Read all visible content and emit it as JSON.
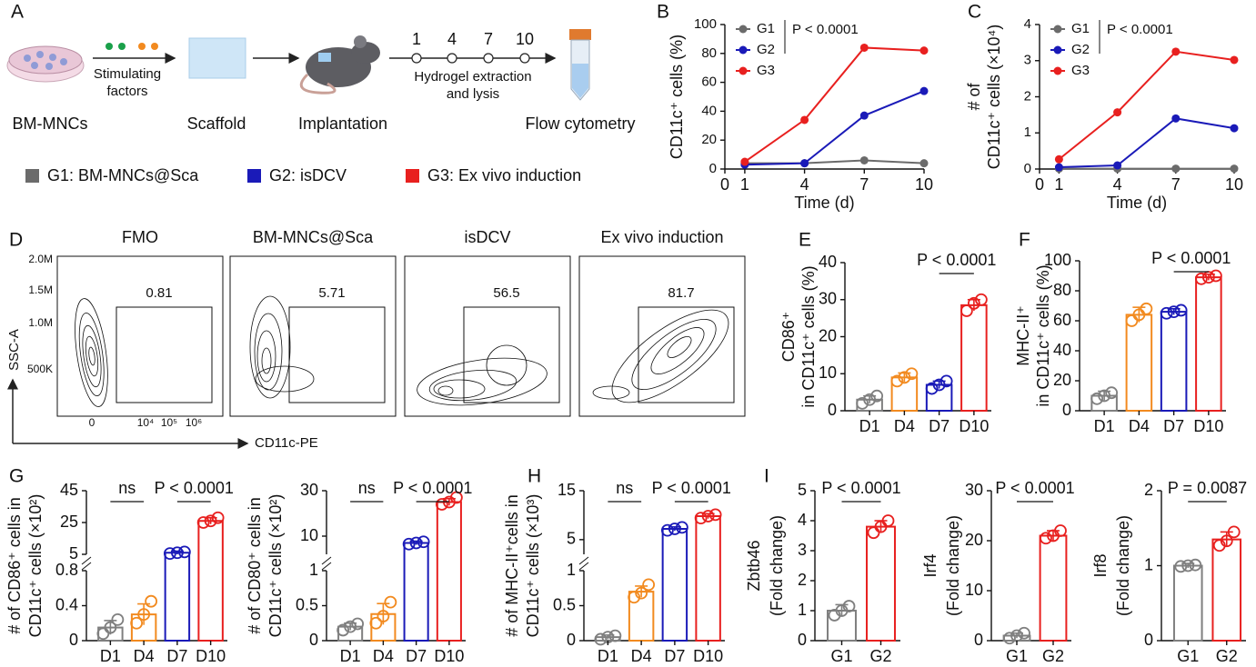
{
  "panel_labels": [
    "A",
    "B",
    "C",
    "D",
    "E",
    "F",
    "G",
    "H",
    "I"
  ],
  "schematic": {
    "steps": [
      "BM-MNCs",
      "Scaffold",
      "Implantation",
      "Flow cytometry"
    ],
    "stimulus": [
      "Stimulating",
      "factors"
    ],
    "days": [
      1,
      4,
      7,
      10
    ],
    "process": [
      "Hydrogel extraction",
      "and lysis"
    ],
    "groups": [
      {
        "label": "G1: BM-MNCs@Sca",
        "color": "#6b6b6b"
      },
      {
        "label": "G2: isDCV",
        "color": "#1a1ab8"
      },
      {
        "label": "G3: Ex vivo induction",
        "color": "#e8201f"
      }
    ]
  },
  "flow": {
    "y_label": "SSC-A",
    "x_label": "CD11c-PE",
    "yticks": [
      "2.0M",
      "1.5M",
      "1.0M",
      "500K"
    ],
    "xticks": [
      "0",
      "10⁴",
      "10⁵",
      "10⁶"
    ],
    "panels": [
      {
        "title": "FMO",
        "gate": 0.81
      },
      {
        "title": "BM-MNCs@Sca",
        "gate": 5.71
      },
      {
        "title": "isDCV",
        "gate": 56.5
      },
      {
        "title": "Ex vivo induction",
        "gate": 81.7
      }
    ]
  },
  "chart_data": [
    {
      "type": "line",
      "x": [
        1,
        4,
        7,
        10
      ],
      "xlim": [
        0,
        10
      ],
      "xticks": [
        0,
        1,
        4,
        7,
        10
      ],
      "ylim": [
        0,
        100
      ],
      "yticks": [
        0,
        20,
        40,
        60,
        80,
        100
      ],
      "x_label": "Time (d)",
      "y_label": [
        "CD11c⁺ cells (%)"
      ],
      "legend": "upper left",
      "annotation": "P < 0.0001",
      "series": [
        {
          "name": "G1",
          "color": "#6b6b6b",
          "values": [
            4,
            4,
            6,
            4
          ]
        },
        {
          "name": "G2",
          "color": "#1a1ab8",
          "values": [
            3,
            4,
            37,
            54
          ]
        },
        {
          "name": "G3",
          "color": "#e8201f",
          "values": [
            5,
            34,
            84,
            82
          ]
        }
      ]
    },
    {
      "type": "line",
      "x": [
        1,
        4,
        7,
        10
      ],
      "xlim": [
        0,
        10
      ],
      "xticks": [
        0,
        1,
        4,
        7,
        10
      ],
      "ylim": [
        0,
        4
      ],
      "yticks": [
        0,
        1,
        2,
        3,
        4
      ],
      "x_label": "Time (d)",
      "y_label": [
        "# of",
        "CD11c⁺ cells (×10⁴)"
      ],
      "legend": "upper left",
      "annotation": "P < 0.0001",
      "series": [
        {
          "name": "G1",
          "color": "#6b6b6b",
          "values": [
            0.01,
            0.01,
            0.01,
            0.01
          ]
        },
        {
          "name": "G2",
          "color": "#1a1ab8",
          "values": [
            0.05,
            0.1,
            1.4,
            1.13
          ]
        },
        {
          "name": "G3",
          "color": "#e8201f",
          "values": [
            0.27,
            1.57,
            3.25,
            3.02
          ]
        }
      ]
    },
    {
      "type": "bar",
      "categories": [
        "D1",
        "D4",
        "D7",
        "D10"
      ],
      "colors": [
        "#7f7f7f",
        "#f28a1f",
        "#1a1ab8",
        "#e8201f"
      ],
      "values": [
        3,
        9,
        7,
        28.5
      ],
      "errors": [
        1,
        1.2,
        1,
        1.5
      ],
      "points": [
        [
          2,
          3,
          4
        ],
        [
          8,
          9,
          10
        ],
        [
          6,
          7,
          8
        ],
        [
          27,
          29,
          30
        ]
      ],
      "ylim": [
        0,
        40
      ],
      "yticks": [
        0,
        10,
        20,
        30,
        40
      ],
      "y_label": [
        "CD86⁺",
        "in CD11c⁺ cells (%)"
      ],
      "comparisons": [
        {
          "label": "P < 0.0001",
          "pair": [
            "D7",
            "D10"
          ]
        }
      ]
    },
    {
      "type": "bar",
      "categories": [
        "D1",
        "D4",
        "D7",
        "D10"
      ],
      "colors": [
        "#7f7f7f",
        "#f28a1f",
        "#1a1ab8",
        "#e8201f"
      ],
      "values": [
        10,
        64,
        66,
        89
      ],
      "errors": [
        3,
        5,
        2,
        2
      ],
      "points": [
        [
          8,
          10,
          12
        ],
        [
          60,
          64,
          68
        ],
        [
          65,
          66,
          67
        ],
        [
          88,
          89,
          90
        ]
      ],
      "ylim": [
        0,
        100
      ],
      "yticks": [
        0,
        20,
        40,
        60,
        80,
        100
      ],
      "y_label": [
        "MHC-II⁺",
        "in CD11c⁺ cells (%)"
      ],
      "comparisons": [
        {
          "label": "P < 0.0001",
          "pair": [
            "D7",
            "D10"
          ]
        }
      ]
    },
    {
      "type": "bar",
      "categories": [
        "D1",
        "D4",
        "D7",
        "D10"
      ],
      "colors": [
        "#7f7f7f",
        "#f28a1f",
        "#1a1ab8",
        "#e8201f"
      ],
      "values": [
        0.15,
        0.3,
        6,
        26
      ],
      "errors": [
        0.08,
        0.12,
        1,
        2
      ],
      "points": [
        [
          0.08,
          0.15,
          0.24
        ],
        [
          0.2,
          0.3,
          0.45
        ],
        [
          5.5,
          6,
          6.5
        ],
        [
          25,
          26,
          28
        ]
      ],
      "segments": [
        {
          "ylim": [
            0,
            0.8
          ],
          "yticks": [
            0,
            0.4,
            0.8
          ]
        },
        {
          "ylim": [
            5,
            45
          ],
          "yticks": [
            5,
            25,
            45
          ]
        }
      ],
      "y_label": [
        "# of CD86⁺ cells in",
        "CD11c⁺ cells (×10²)"
      ],
      "comparisons": [
        {
          "label": "ns",
          "pair": [
            "D1",
            "D4"
          ]
        },
        {
          "label": "P < 0.0001",
          "pair": [
            "D7",
            "D10"
          ]
        }
      ]
    },
    {
      "type": "bar",
      "categories": [
        "D1",
        "D4",
        "D7",
        "D10"
      ],
      "colors": [
        "#7f7f7f",
        "#f28a1f",
        "#1a1ab8",
        "#e8201f"
      ],
      "values": [
        0.2,
        0.38,
        7,
        25
      ],
      "errors": [
        0.05,
        0.15,
        0.8,
        1.5
      ],
      "points": [
        [
          0.15,
          0.2,
          0.24
        ],
        [
          0.25,
          0.35,
          0.55
        ],
        [
          6.5,
          7,
          7.5
        ],
        [
          24,
          25,
          27
        ]
      ],
      "segments": [
        {
          "ylim": [
            0,
            1
          ],
          "yticks": [
            0,
            0.5,
            1
          ]
        },
        {
          "ylim": [
            2,
            30
          ],
          "yticks": [
            10,
            30
          ]
        }
      ],
      "y_label": [
        "# of CD80⁺ cells in",
        "CD11c⁺ cells (×10²)"
      ],
      "comparisons": [
        {
          "label": "ns",
          "pair": [
            "D1",
            "D4"
          ]
        },
        {
          "label": "P < 0.0001",
          "pair": [
            "D7",
            "D10"
          ]
        }
      ]
    },
    {
      "type": "bar",
      "categories": [
        "D1",
        "D4",
        "D7",
        "D10"
      ],
      "colors": [
        "#7f7f7f",
        "#f28a1f",
        "#1a1ab8",
        "#e8201f"
      ],
      "values": [
        0.05,
        0.7,
        7.2,
        9.8
      ],
      "errors": [
        0.03,
        0.08,
        0.4,
        0.5
      ],
      "points": [
        [
          0.02,
          0.05,
          0.07
        ],
        [
          0.62,
          0.68,
          0.8
        ],
        [
          6.9,
          7.2,
          7.5
        ],
        [
          9.4,
          9.8,
          10.1
        ]
      ],
      "segments": [
        {
          "ylim": [
            0,
            1
          ],
          "yticks": [
            0,
            0.5,
            1
          ]
        },
        {
          "ylim": [
            2,
            15
          ],
          "yticks": [
            5,
            15
          ]
        }
      ],
      "y_label": [
        "# of MHC-II⁺cells in",
        "CD11c⁺ cells (×10³)"
      ],
      "comparisons": [
        {
          "label": "ns",
          "pair": [
            "D1",
            "D4"
          ]
        },
        {
          "label": "P < 0.0001",
          "pair": [
            "D7",
            "D10"
          ]
        }
      ]
    },
    {
      "type": "bar",
      "categories": [
        "G1",
        "G2"
      ],
      "colors": [
        "#7f7f7f",
        "#e8201f"
      ],
      "values": [
        1,
        3.8
      ],
      "errors": [
        0.2,
        0.2
      ],
      "points": [
        [
          0.85,
          1,
          1.15
        ],
        [
          3.6,
          3.8,
          4.0
        ]
      ],
      "ylim": [
        0,
        5
      ],
      "yticks": [
        0,
        1,
        2,
        3,
        4,
        5
      ],
      "y_label": [
        "Zbtb46",
        "(Fold change)"
      ],
      "comparisons": [
        {
          "label": "P < 0.0001",
          "pair": [
            "G1",
            "G2"
          ]
        }
      ]
    },
    {
      "type": "bar",
      "categories": [
        "G1",
        "G2"
      ],
      "colors": [
        "#7f7f7f",
        "#e8201f"
      ],
      "values": [
        1,
        21
      ],
      "errors": [
        0.5,
        1
      ],
      "points": [
        [
          0.5,
          1,
          1.5
        ],
        [
          20.5,
          21,
          22
        ]
      ],
      "ylim": [
        0,
        30
      ],
      "yticks": [
        0,
        10,
        20,
        30
      ],
      "y_label": [
        "Irf4",
        "(Fold change)"
      ],
      "comparisons": [
        {
          "label": "P < 0.0001",
          "pair": [
            "G1",
            "G2"
          ]
        }
      ]
    },
    {
      "type": "bar",
      "categories": [
        "G1",
        "G2"
      ],
      "colors": [
        "#7f7f7f",
        "#e8201f"
      ],
      "values": [
        1,
        1.35
      ],
      "errors": [
        0.03,
        0.1
      ],
      "points": [
        [
          0.99,
          1,
          1.01
        ],
        [
          1.27,
          1.33,
          1.45
        ]
      ],
      "ylim": [
        0,
        2
      ],
      "yticks": [
        0,
        1,
        2
      ],
      "y_label": [
        "Irf8",
        "(Fold change)"
      ],
      "comparisons": [
        {
          "label": "P = 0.0087",
          "pair": [
            "G1",
            "G2"
          ]
        }
      ]
    }
  ]
}
